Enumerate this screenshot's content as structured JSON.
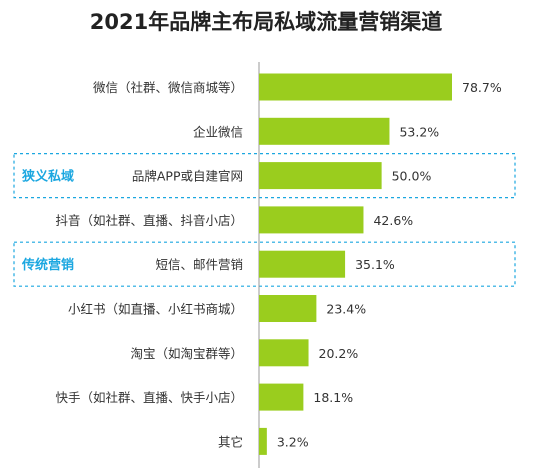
{
  "chart_data": {
    "type": "bar",
    "orientation": "horizontal",
    "title": "2021年品牌主布局私域流量营销渠道",
    "categories": [
      "微信（社群、微信商城等）",
      "企业微信",
      "品牌APP或自建官网",
      "抖音（如社群、直播、抖音小店）",
      "短信、邮件营销",
      "小红书（如直播、小红书商城）",
      "淘宝（如淘宝群等）",
      "快手（如社群、直播、快手小店）",
      "其它"
    ],
    "values": [
      78.7,
      53.2,
      50.0,
      42.6,
      35.1,
      23.4,
      20.2,
      18.1,
      3.2
    ],
    "value_labels": [
      "78.7%",
      "53.2%",
      "50.0%",
      "42.6%",
      "35.1%",
      "23.4%",
      "20.2%",
      "18.1%",
      "3.2%"
    ],
    "xlim": [
      0,
      100
    ],
    "grid": false,
    "bar_color": "#9ACD1E",
    "axis_color": "#999999",
    "groups": [
      {
        "label": "狭义私域",
        "category_index": 2
      },
      {
        "label": "传统营销",
        "category_index": 4
      }
    ],
    "group_color": "#1BA7E0"
  }
}
